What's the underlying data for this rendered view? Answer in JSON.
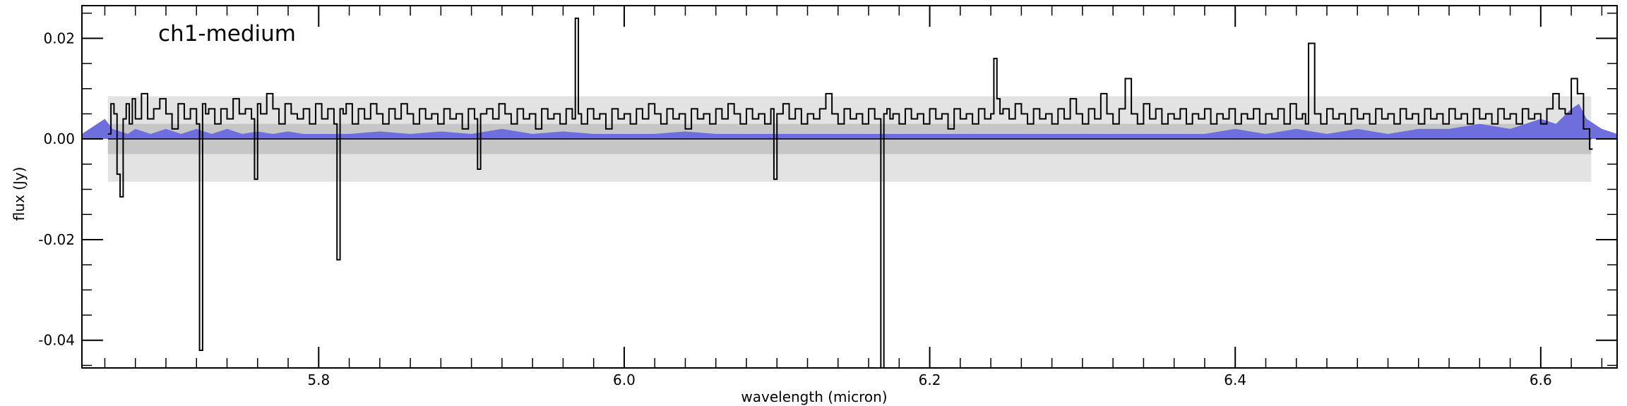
{
  "chart_data": {
    "type": "line",
    "panel_label": "ch1-medium",
    "xlabel": "wavelength (micron)",
    "ylabel": "flux (Jy)",
    "xlim": [
      5.645,
      6.65
    ],
    "ylim": [
      -0.0455,
      0.0265
    ],
    "x_ticks": [
      5.8,
      6.0,
      6.2,
      6.4,
      6.6
    ],
    "x_tick_labels": [
      "5.8",
      "6.0",
      "6.2",
      "6.4",
      "6.6"
    ],
    "x_minor_step": 0.02,
    "y_ticks": [
      0.02,
      0.0,
      -0.02,
      -0.04
    ],
    "y_tick_labels": [
      "0.02",
      "0.00",
      "-0.02",
      "-0.04"
    ],
    "y_minor_step": 0.005,
    "bands": [
      {
        "name": "outer",
        "x_range": [
          5.662,
          6.633
        ],
        "y_range": [
          -0.0085,
          0.0085
        ],
        "color": "#e3e3e3"
      },
      {
        "name": "inner",
        "x_range": [
          5.662,
          6.633
        ],
        "y_range": [
          -0.003,
          0.003
        ],
        "color": "#c6c6c6"
      }
    ],
    "colors": {
      "flux_line": "#000000",
      "model_fill": "#6e6edc"
    },
    "series": [
      {
        "kind": "step",
        "x": [
          5.662,
          5.664,
          5.666,
          5.668,
          5.67,
          5.672,
          5.674,
          5.676,
          5.678,
          5.68,
          5.684,
          5.688,
          5.692,
          5.696,
          5.7,
          5.704,
          5.708,
          5.712,
          5.716,
          5.72,
          5.722,
          5.724,
          5.726,
          5.728,
          5.732,
          5.736,
          5.74,
          5.744,
          5.748,
          5.752,
          5.756,
          5.758,
          5.76,
          5.762,
          5.766,
          5.77,
          5.774,
          5.778,
          5.782,
          5.786,
          5.79,
          5.794,
          5.798,
          5.802,
          5.806,
          5.81,
          5.812,
          5.814,
          5.816,
          5.818,
          5.822,
          5.826,
          5.83,
          5.834,
          5.838,
          5.842,
          5.846,
          5.85,
          5.854,
          5.858,
          5.862,
          5.866,
          5.87,
          5.874,
          5.878,
          5.882,
          5.886,
          5.89,
          5.894,
          5.898,
          5.902,
          5.904,
          5.906,
          5.91,
          5.914,
          5.918,
          5.922,
          5.926,
          5.93,
          5.934,
          5.938,
          5.942,
          5.946,
          5.95,
          5.954,
          5.958,
          5.962,
          5.966,
          5.968,
          5.97,
          5.972,
          5.976,
          5.98,
          5.984,
          5.988,
          5.992,
          5.996,
          6.0,
          6.004,
          6.008,
          6.012,
          6.016,
          6.02,
          6.024,
          6.028,
          6.032,
          6.036,
          6.04,
          6.044,
          6.048,
          6.052,
          6.056,
          6.06,
          6.064,
          6.068,
          6.072,
          6.076,
          6.08,
          6.084,
          6.088,
          6.092,
          6.096,
          6.098,
          6.1,
          6.104,
          6.108,
          6.112,
          6.116,
          6.12,
          6.124,
          6.128,
          6.132,
          6.136,
          6.14,
          6.144,
          6.148,
          6.152,
          6.156,
          6.16,
          6.164,
          6.168,
          6.17,
          6.172,
          6.174,
          6.176,
          6.18,
          6.184,
          6.188,
          6.192,
          6.196,
          6.2,
          6.204,
          6.208,
          6.212,
          6.216,
          6.22,
          6.224,
          6.228,
          6.232,
          6.236,
          6.24,
          6.242,
          6.244,
          6.246,
          6.248,
          6.252,
          6.256,
          6.26,
          6.264,
          6.268,
          6.272,
          6.276,
          6.28,
          6.284,
          6.288,
          6.292,
          6.296,
          6.3,
          6.304,
          6.308,
          6.312,
          6.316,
          6.32,
          6.324,
          6.328,
          6.332,
          6.336,
          6.34,
          6.344,
          6.348,
          6.352,
          6.356,
          6.36,
          6.364,
          6.368,
          6.372,
          6.376,
          6.38,
          6.384,
          6.388,
          6.392,
          6.396,
          6.4,
          6.404,
          6.408,
          6.412,
          6.416,
          6.42,
          6.424,
          6.428,
          6.432,
          6.436,
          6.44,
          6.444,
          6.446,
          6.448,
          6.452,
          6.456,
          6.46,
          6.464,
          6.468,
          6.472,
          6.476,
          6.48,
          6.484,
          6.488,
          6.492,
          6.496,
          6.5,
          6.504,
          6.508,
          6.512,
          6.516,
          6.52,
          6.524,
          6.528,
          6.532,
          6.536,
          6.54,
          6.544,
          6.548,
          6.552,
          6.556,
          6.56,
          6.564,
          6.568,
          6.572,
          6.576,
          6.58,
          6.584,
          6.588,
          6.592,
          6.596,
          6.6,
          6.604,
          6.608,
          6.612,
          6.616,
          6.62,
          6.624,
          6.628,
          6.632
        ],
        "y": [
          0.001,
          0.007,
          0.005,
          -0.007,
          -0.0115,
          0.004,
          0.007,
          0.003,
          0.008,
          0.004,
          0.009,
          0.004,
          0.006,
          0.008,
          0.005,
          0.002,
          0.007,
          0.004,
          0.006,
          0.003,
          -0.042,
          0.007,
          0.005,
          0.006,
          0.003,
          0.006,
          0.004,
          0.008,
          0.005,
          0.006,
          0.004,
          -0.008,
          0.007,
          0.005,
          0.009,
          0.006,
          0.003,
          0.007,
          0.005,
          0.004,
          0.006,
          0.003,
          0.007,
          0.004,
          0.006,
          0.003,
          -0.024,
          0.006,
          0.005,
          0.007,
          0.003,
          0.006,
          0.004,
          0.007,
          0.005,
          0.003,
          0.006,
          0.004,
          0.007,
          0.005,
          0.003,
          0.006,
          0.004,
          0.005,
          0.003,
          0.006,
          0.004,
          0.005,
          0.002,
          0.006,
          0.004,
          -0.006,
          0.005,
          0.006,
          0.004,
          0.007,
          0.005,
          0.003,
          0.006,
          0.004,
          0.005,
          0.002,
          0.006,
          0.004,
          0.005,
          0.003,
          0.006,
          0.004,
          0.024,
          0.005,
          0.003,
          0.006,
          0.004,
          0.005,
          0.002,
          0.006,
          0.004,
          0.005,
          0.003,
          0.006,
          0.004,
          0.007,
          0.005,
          0.003,
          0.006,
          0.004,
          0.005,
          0.002,
          0.006,
          0.004,
          0.005,
          0.003,
          0.006,
          0.004,
          0.007,
          0.005,
          0.003,
          0.006,
          0.004,
          0.005,
          0.003,
          0.006,
          -0.008,
          0.005,
          0.007,
          0.004,
          0.006,
          0.003,
          0.005,
          0.004,
          0.006,
          0.009,
          0.005,
          0.003,
          0.006,
          0.004,
          0.005,
          0.003,
          0.006,
          0.004,
          -0.0455,
          0.005,
          0.006,
          0.004,
          0.005,
          0.003,
          0.006,
          0.004,
          0.005,
          0.003,
          0.006,
          0.004,
          0.005,
          0.002,
          0.006,
          0.004,
          0.005,
          0.003,
          0.006,
          0.004,
          0.005,
          0.016,
          0.008,
          0.005,
          0.006,
          0.004,
          0.007,
          0.005,
          0.003,
          0.006,
          0.004,
          0.005,
          0.003,
          0.006,
          0.004,
          0.008,
          0.005,
          0.003,
          0.006,
          0.004,
          0.009,
          0.005,
          0.003,
          0.006,
          0.012,
          0.005,
          0.003,
          0.007,
          0.004,
          0.006,
          0.003,
          0.005,
          0.004,
          0.006,
          0.003,
          0.005,
          0.004,
          0.006,
          0.003,
          0.005,
          0.004,
          0.006,
          0.003,
          0.005,
          0.004,
          0.006,
          0.003,
          0.005,
          0.004,
          0.006,
          0.003,
          0.007,
          0.004,
          0.005,
          0.003,
          0.019,
          0.005,
          0.003,
          0.006,
          0.004,
          0.005,
          0.003,
          0.006,
          0.004,
          0.005,
          0.003,
          0.006,
          0.004,
          0.005,
          0.003,
          0.006,
          0.004,
          0.005,
          0.003,
          0.006,
          0.004,
          0.005,
          0.003,
          0.006,
          0.004,
          0.005,
          0.003,
          0.006,
          0.004,
          0.005,
          0.003,
          0.006,
          0.004,
          0.005,
          0.003,
          0.006,
          0.004,
          0.005,
          0.003,
          0.006,
          0.009,
          0.006,
          0.005,
          0.012,
          0.009,
          0.002,
          -0.002
        ]
      },
      {
        "kind": "area",
        "x": [
          5.645,
          5.66,
          5.665,
          5.675,
          5.68,
          5.69,
          5.7,
          5.71,
          5.72,
          5.73,
          5.74,
          5.75,
          5.76,
          5.77,
          5.78,
          5.79,
          5.8,
          5.82,
          5.84,
          5.86,
          5.88,
          5.9,
          5.92,
          5.94,
          5.96,
          5.98,
          6.0,
          6.02,
          6.04,
          6.06,
          6.08,
          6.1,
          6.12,
          6.14,
          6.16,
          6.18,
          6.2,
          6.22,
          6.24,
          6.26,
          6.28,
          6.3,
          6.32,
          6.34,
          6.36,
          6.38,
          6.4,
          6.42,
          6.44,
          6.46,
          6.48,
          6.5,
          6.52,
          6.54,
          6.56,
          6.58,
          6.6,
          6.61,
          6.62,
          6.625,
          6.63,
          6.64,
          6.65
        ],
        "y": [
          0.001,
          0.004,
          0.002,
          0.001,
          0.002,
          0.001,
          0.002,
          0.001,
          0.002,
          0.001,
          0.002,
          0.001,
          0.0015,
          0.001,
          0.0015,
          0.001,
          0.001,
          0.001,
          0.0015,
          0.001,
          0.0015,
          0.001,
          0.002,
          0.001,
          0.0015,
          0.001,
          0.001,
          0.001,
          0.0015,
          0.001,
          0.001,
          0.001,
          0.001,
          0.001,
          0.001,
          0.001,
          0.001,
          0.001,
          0.001,
          0.001,
          0.001,
          0.001,
          0.001,
          0.001,
          0.001,
          0.001,
          0.002,
          0.001,
          0.002,
          0.001,
          0.002,
          0.001,
          0.002,
          0.002,
          0.003,
          0.002,
          0.004,
          0.003,
          0.006,
          0.007,
          0.004,
          0.002,
          0.001
        ]
      }
    ]
  }
}
